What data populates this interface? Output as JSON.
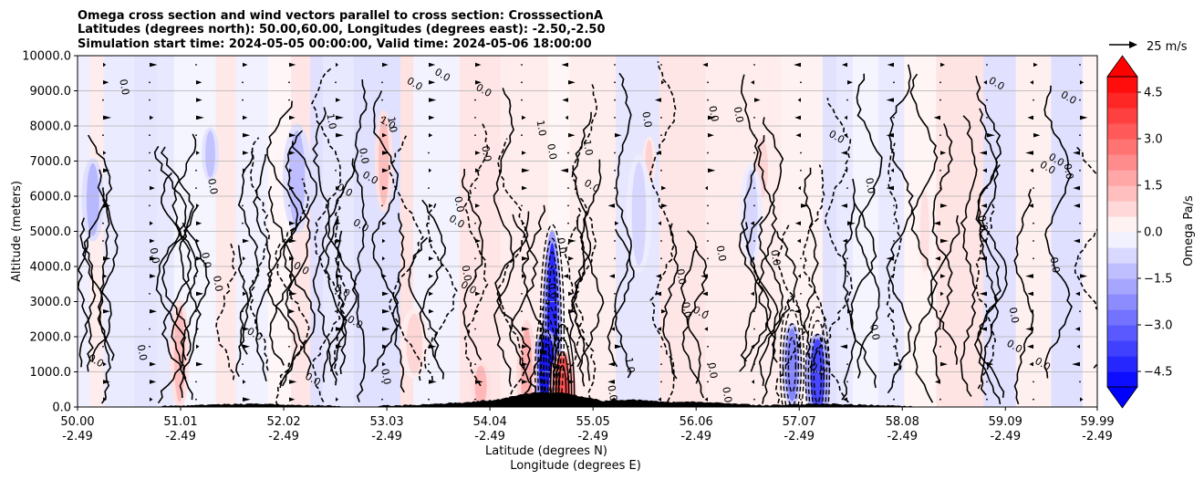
{
  "chart_data": {
    "type": "heatmap",
    "title_lines": [
      "Omega cross section and wind vectors parallel to cross section: CrosssectionA",
      "Latitudes (degrees north): 50.00,60.00, Longitudes (degrees east): -2.50,-2.50",
      "Simulation start time: 2024-05-05 00:00:00, Valid time: 2024-05-06 18:00:00"
    ],
    "ylabel": "Altitude (meters)",
    "xlabel": "Latitude (degrees N)",
    "xlabel2": "Longitude (degrees E)",
    "ylim": [
      0,
      10000
    ],
    "y_ticks": [
      0,
      1000,
      2000,
      3000,
      4000,
      5000,
      6000,
      7000,
      8000,
      9000,
      10000
    ],
    "y_tick_labels": [
      "0.0",
      "1000.0",
      "2000.0",
      "3000.0",
      "4000.0",
      "5000.0",
      "6000.0",
      "7000.0",
      "8000.0",
      "9000.0",
      "10000.0"
    ],
    "xlim": [
      50.0,
      59.99
    ],
    "x_ticks": [
      50.0,
      51.01,
      52.02,
      53.03,
      54.04,
      55.05,
      56.06,
      57.07,
      58.08,
      59.09,
      59.99
    ],
    "x_tick_labels": [
      "50.00",
      "51.01",
      "52.02",
      "53.03",
      "54.04",
      "55.05",
      "56.06",
      "57.07",
      "58.08",
      "59.09",
      "59.99"
    ],
    "x_tick_labels_lon": [
      "-2.49",
      "-2.49",
      "-2.49",
      "-2.49",
      "-2.49",
      "-2.49",
      "-2.49",
      "-2.49",
      "-2.49",
      "-2.49",
      "-2.49"
    ],
    "grid": "horizontal",
    "colorbar": {
      "label": "Omega Pa/s",
      "range": [
        -5,
        5
      ],
      "colormap": "bwr",
      "extend": "both",
      "ticks": [
        4.5,
        3.0,
        1.5,
        0.0,
        -1.5,
        -3.0,
        -4.5
      ],
      "tick_labels": [
        "4.5",
        "3.0",
        "1.5",
        "0.0",
        "−1.5",
        "−3.0",
        "−4.5"
      ]
    },
    "quiver_key": {
      "label": "25 m/s",
      "speed": 25
    },
    "contour_levels": [
      -1.0,
      0.0,
      1.0
    ],
    "contour_label_samples": [
      "0.0",
      "-1.0",
      "1.0"
    ],
    "terrain_peaks": [
      {
        "lat": 54.6,
        "alt": 400
      },
      {
        "lat": 55.4,
        "alt": 180
      },
      {
        "lat": 54.2,
        "alt": 180
      },
      {
        "lat": 56.0,
        "alt": 120
      },
      {
        "lat": 53.9,
        "alt": 110
      },
      {
        "lat": 57.3,
        "alt": 60
      },
      {
        "lat": 51.7,
        "alt": 60
      }
    ],
    "omega_features": [
      {
        "lat": 54.65,
        "alt": 2200,
        "value": -4.2
      },
      {
        "lat": 54.6,
        "alt": 1000,
        "value": -4.5
      },
      {
        "lat": 57.25,
        "alt": 900,
        "value": -3.6
      },
      {
        "lat": 57.0,
        "alt": 1200,
        "value": -2.4
      },
      {
        "lat": 54.75,
        "alt": 400,
        "value": 3.4
      },
      {
        "lat": 54.4,
        "alt": 900,
        "value": 1.6
      },
      {
        "lat": 50.15,
        "alt": 5900,
        "value": -1.4
      },
      {
        "lat": 51.3,
        "alt": 7200,
        "value": -1.2
      },
      {
        "lat": 52.15,
        "alt": 6500,
        "value": -1.3
      },
      {
        "lat": 53.0,
        "alt": 7000,
        "value": 1.3
      },
      {
        "lat": 51.0,
        "alt": 1500,
        "value": 1.3
      },
      {
        "lat": 53.95,
        "alt": 600,
        "value": 1.4
      },
      {
        "lat": 55.6,
        "alt": 7000,
        "value": 0.9
      },
      {
        "lat": 56.7,
        "alt": 6800,
        "value": 0.8
      },
      {
        "lat": 53.3,
        "alt": 1800,
        "value": 0.8
      },
      {
        "lat": 55.5,
        "alt": 5500,
        "value": -0.8
      },
      {
        "lat": 56.6,
        "alt": 5500,
        "value": -0.8
      },
      {
        "lat": 58.3,
        "alt": 5000,
        "value": 0.6
      }
    ]
  }
}
